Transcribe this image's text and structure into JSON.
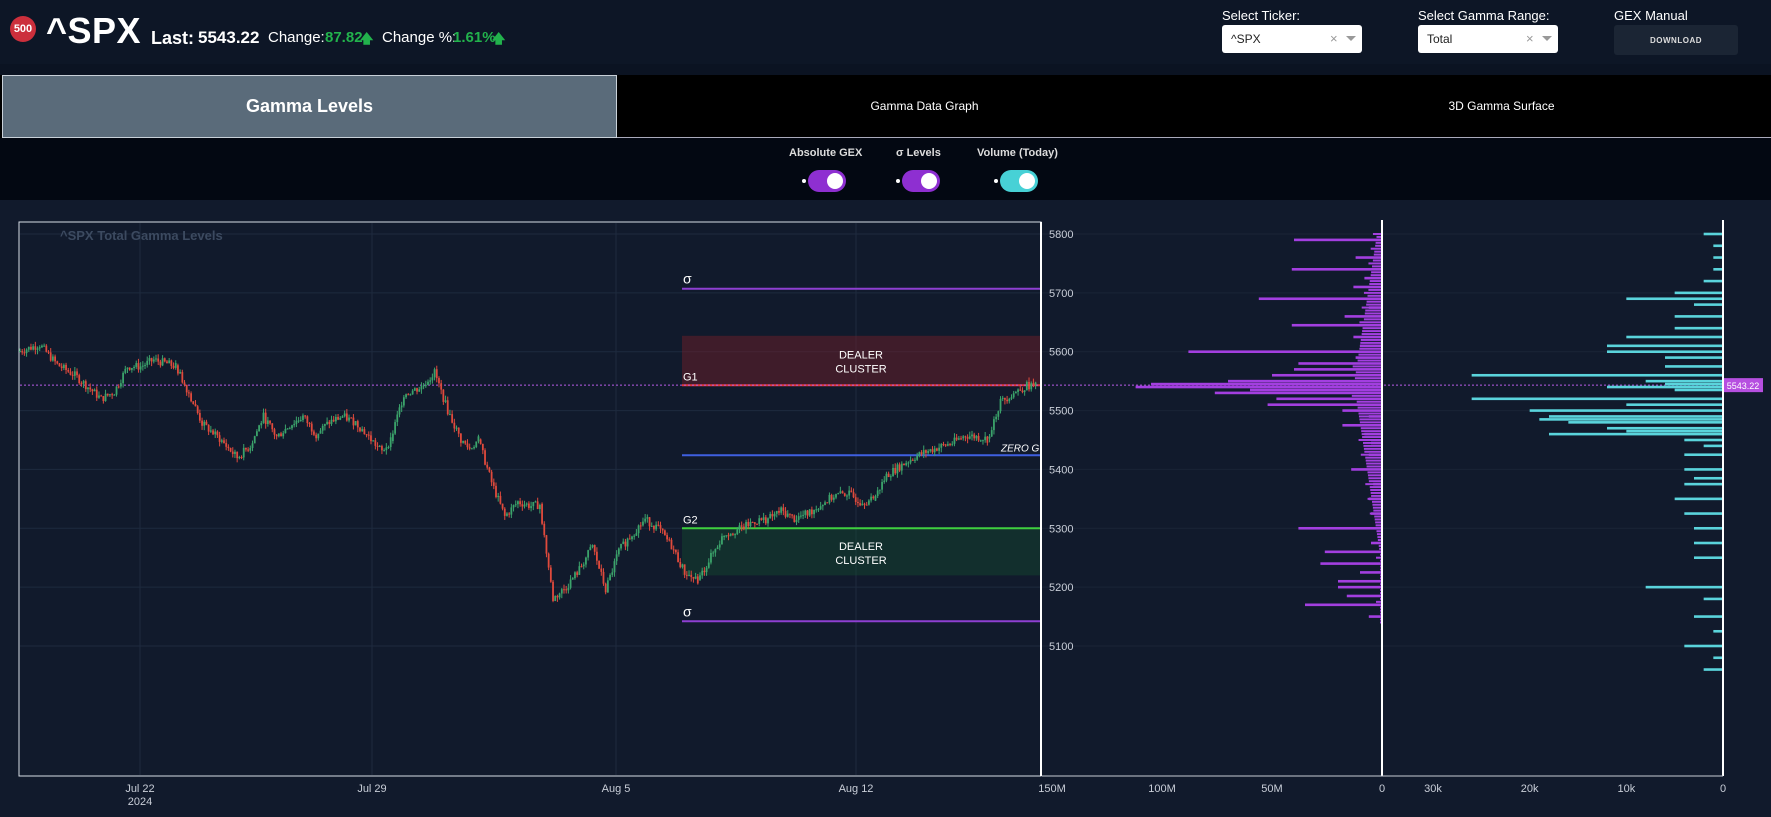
{
  "header": {
    "badge": "500",
    "ticker": "^SPX",
    "last_label": "Last:",
    "last_value": "5543.22",
    "change_label": "Change:",
    "change_value": "87.82",
    "change_pct_label": "Change %:",
    "change_pct_value": "1.61%",
    "select_ticker_label": "Select Ticker:",
    "select_ticker_value": "^SPX",
    "select_range_label": "Select Gamma Range:",
    "select_range_value": "Total",
    "manual_label": "GEX Manual",
    "download_label": "DOWNLOAD",
    "positive_color": "#22b24c"
  },
  "tabs": [
    {
      "label": "Gamma Levels",
      "active": true
    },
    {
      "label": "Gamma Data Graph",
      "active": false
    },
    {
      "label": "3D Gamma Surface",
      "active": false
    }
  ],
  "toggles": [
    {
      "label": "Absolute GEX",
      "on": true,
      "color": "#8e2fd1"
    },
    {
      "label": "σ Levels",
      "on": true,
      "color": "#8e2fd1"
    },
    {
      "label": "Volume (Today)",
      "on": true,
      "color": "#47d1d6"
    }
  ],
  "chart_data": {
    "type": "candlestick",
    "title": "^SPX Total Gamma Levels",
    "price_axis": {
      "ticks": [
        "5800",
        "5700",
        "5600",
        "5500",
        "5400",
        "5300",
        "5200",
        "5100"
      ],
      "range": [
        5040,
        5820
      ]
    },
    "x_ticks": [
      {
        "label": "Jul 22",
        "sub": "2024"
      },
      {
        "label": "Jul 29",
        "sub": ""
      },
      {
        "label": "Aug 5",
        "sub": ""
      },
      {
        "label": "Aug 12",
        "sub": ""
      }
    ],
    "last_price": 5543.22,
    "last_price_label": "5543.22",
    "levels": [
      {
        "name": "sigma-upper",
        "label": "σ",
        "price": 5707,
        "color": "#8e3fd1"
      },
      {
        "name": "g1",
        "label": "G1",
        "price": 5543,
        "color": "#e03a3a"
      },
      {
        "name": "zero-gamma",
        "label": "ZERO G",
        "price": 5424,
        "color": "#3f5fe0"
      },
      {
        "name": "g2",
        "label": "G2",
        "price": 5300,
        "color": "#3fcf3f"
      },
      {
        "name": "sigma-lower",
        "label": "σ",
        "price": 5142,
        "color": "#8e3fd1"
      }
    ],
    "zones": [
      {
        "label_line1": "DEALER",
        "label_line2": "CLUSTER",
        "from": 5543,
        "to": 5627,
        "color": "rgba(120,30,40,0.45)"
      },
      {
        "label_line1": "DEALER",
        "label_line2": "CLUSTER",
        "from": 5220,
        "to": 5300,
        "color": "rgba(20,90,50,0.35)"
      }
    ],
    "anchors": [
      [
        0,
        5600
      ],
      [
        10,
        5612
      ],
      [
        18,
        5578
      ],
      [
        26,
        5560
      ],
      [
        32,
        5540
      ],
      [
        38,
        5520
      ],
      [
        44,
        5532
      ],
      [
        50,
        5575
      ],
      [
        56,
        5575
      ],
      [
        62,
        5586
      ],
      [
        68,
        5580
      ],
      [
        72,
        5575
      ],
      [
        78,
        5530
      ],
      [
        84,
        5478
      ],
      [
        92,
        5452
      ],
      [
        100,
        5420
      ],
      [
        106,
        5440
      ],
      [
        112,
        5490
      ],
      [
        118,
        5455
      ],
      [
        124,
        5475
      ],
      [
        130,
        5490
      ],
      [
        136,
        5460
      ],
      [
        142,
        5480
      ],
      [
        148,
        5490
      ],
      [
        154,
        5480
      ],
      [
        160,
        5455
      ],
      [
        166,
        5430
      ],
      [
        170,
        5450
      ],
      [
        176,
        5528
      ],
      [
        184,
        5540
      ],
      [
        190,
        5565
      ],
      [
        196,
        5500
      ],
      [
        202,
        5450
      ],
      [
        206,
        5435
      ],
      [
        210,
        5450
      ],
      [
        216,
        5378
      ],
      [
        222,
        5320
      ],
      [
        228,
        5345
      ],
      [
        234,
        5338
      ],
      [
        238,
        5340
      ],
      [
        244,
        5180
      ],
      [
        250,
        5200
      ],
      [
        256,
        5230
      ],
      [
        262,
        5270
      ],
      [
        268,
        5195
      ],
      [
        274,
        5262
      ],
      [
        280,
        5290
      ],
      [
        286,
        5315
      ],
      [
        292,
        5300
      ],
      [
        298,
        5270
      ],
      [
        304,
        5225
      ],
      [
        310,
        5210
      ],
      [
        316,
        5252
      ],
      [
        322,
        5290
      ],
      [
        330,
        5300
      ],
      [
        336,
        5312
      ],
      [
        342,
        5316
      ],
      [
        348,
        5330
      ],
      [
        354,
        5316
      ],
      [
        360,
        5325
      ],
      [
        366,
        5340
      ],
      [
        372,
        5355
      ],
      [
        378,
        5360
      ],
      [
        384,
        5346
      ],
      [
        390,
        5348
      ],
      [
        396,
        5390
      ],
      [
        402,
        5405
      ],
      [
        408,
        5420
      ],
      [
        414,
        5430
      ],
      [
        420,
        5438
      ],
      [
        426,
        5445
      ],
      [
        432,
        5458
      ],
      [
        438,
        5455
      ],
      [
        442,
        5452
      ],
      [
        448,
        5515
      ],
      [
        454,
        5530
      ],
      [
        460,
        5542
      ],
      [
        464,
        5543
      ]
    ],
    "gex_axis": {
      "ticks": [
        "150M",
        "100M",
        "50M",
        "0"
      ],
      "max": 150
    },
    "gex_bars": [
      {
        "strike": 5790,
        "value": 40
      },
      {
        "strike": 5760,
        "value": 12
      },
      {
        "strike": 5740,
        "value": 41
      },
      {
        "strike": 5725,
        "value": 8
      },
      {
        "strike": 5710,
        "value": 13
      },
      {
        "strike": 5690,
        "value": 56
      },
      {
        "strike": 5675,
        "value": 6
      },
      {
        "strike": 5660,
        "value": 17
      },
      {
        "strike": 5645,
        "value": 41
      },
      {
        "strike": 5625,
        "value": 13
      },
      {
        "strike": 5610,
        "value": 10
      },
      {
        "strike": 5600,
        "value": 88
      },
      {
        "strike": 5590,
        "value": 12
      },
      {
        "strike": 5580,
        "value": 38
      },
      {
        "strike": 5570,
        "value": 40
      },
      {
        "strike": 5560,
        "value": 50
      },
      {
        "strike": 5550,
        "value": 70
      },
      {
        "strike": 5545,
        "value": 105
      },
      {
        "strike": 5540,
        "value": 112
      },
      {
        "strike": 5535,
        "value": 60
      },
      {
        "strike": 5530,
        "value": 76
      },
      {
        "strike": 5520,
        "value": 48
      },
      {
        "strike": 5510,
        "value": 52
      },
      {
        "strike": 5500,
        "value": 18
      },
      {
        "strike": 5490,
        "value": 6
      },
      {
        "strike": 5475,
        "value": 18
      },
      {
        "strike": 5460,
        "value": 8
      },
      {
        "strike": 5445,
        "value": 5
      },
      {
        "strike": 5425,
        "value": 6
      },
      {
        "strike": 5400,
        "value": 14
      },
      {
        "strike": 5375,
        "value": 4
      },
      {
        "strike": 5350,
        "value": 6
      },
      {
        "strike": 5325,
        "value": 5
      },
      {
        "strike": 5300,
        "value": 38
      },
      {
        "strike": 5275,
        "value": 5
      },
      {
        "strike": 5260,
        "value": 26
      },
      {
        "strike": 5240,
        "value": 28
      },
      {
        "strike": 5225,
        "value": 10
      },
      {
        "strike": 5210,
        "value": 20
      },
      {
        "strike": 5200,
        "value": 20
      },
      {
        "strike": 5185,
        "value": 16
      },
      {
        "strike": 5170,
        "value": 35
      },
      {
        "strike": 5150,
        "value": 6
      }
    ],
    "volume_axis": {
      "ticks": [
        "30k",
        "20k",
        "10k",
        "0"
      ],
      "max": 30
    },
    "volume_bars": [
      {
        "strike": 5800,
        "value": 2
      },
      {
        "strike": 5780,
        "value": 1
      },
      {
        "strike": 5760,
        "value": 1
      },
      {
        "strike": 5740,
        "value": 1
      },
      {
        "strike": 5720,
        "value": 2
      },
      {
        "strike": 5700,
        "value": 5
      },
      {
        "strike": 5690,
        "value": 10
      },
      {
        "strike": 5680,
        "value": 3
      },
      {
        "strike": 5660,
        "value": 5
      },
      {
        "strike": 5640,
        "value": 5
      },
      {
        "strike": 5625,
        "value": 10
      },
      {
        "strike": 5610,
        "value": 12
      },
      {
        "strike": 5600,
        "value": 12
      },
      {
        "strike": 5590,
        "value": 6
      },
      {
        "strike": 5575,
        "value": 6
      },
      {
        "strike": 5560,
        "value": 26
      },
      {
        "strike": 5550,
        "value": 8
      },
      {
        "strike": 5545,
        "value": 6
      },
      {
        "strike": 5540,
        "value": 12
      },
      {
        "strike": 5535,
        "value": 5
      },
      {
        "strike": 5520,
        "value": 26
      },
      {
        "strike": 5510,
        "value": 10
      },
      {
        "strike": 5500,
        "value": 20
      },
      {
        "strike": 5490,
        "value": 18
      },
      {
        "strike": 5485,
        "value": 19
      },
      {
        "strike": 5480,
        "value": 16
      },
      {
        "strike": 5470,
        "value": 12
      },
      {
        "strike": 5465,
        "value": 10
      },
      {
        "strike": 5460,
        "value": 18
      },
      {
        "strike": 5450,
        "value": 4
      },
      {
        "strike": 5440,
        "value": 2
      },
      {
        "strike": 5425,
        "value": 4
      },
      {
        "strike": 5400,
        "value": 4
      },
      {
        "strike": 5385,
        "value": 3
      },
      {
        "strike": 5375,
        "value": 4
      },
      {
        "strike": 5350,
        "value": 5
      },
      {
        "strike": 5325,
        "value": 4
      },
      {
        "strike": 5300,
        "value": 3
      },
      {
        "strike": 5275,
        "value": 3
      },
      {
        "strike": 5250,
        "value": 3
      },
      {
        "strike": 5200,
        "value": 8
      },
      {
        "strike": 5180,
        "value": 2
      },
      {
        "strike": 5150,
        "value": 3
      },
      {
        "strike": 5125,
        "value": 1
      },
      {
        "strike": 5100,
        "value": 4
      },
      {
        "strike": 5080,
        "value": 1
      },
      {
        "strike": 5060,
        "value": 2
      }
    ]
  }
}
